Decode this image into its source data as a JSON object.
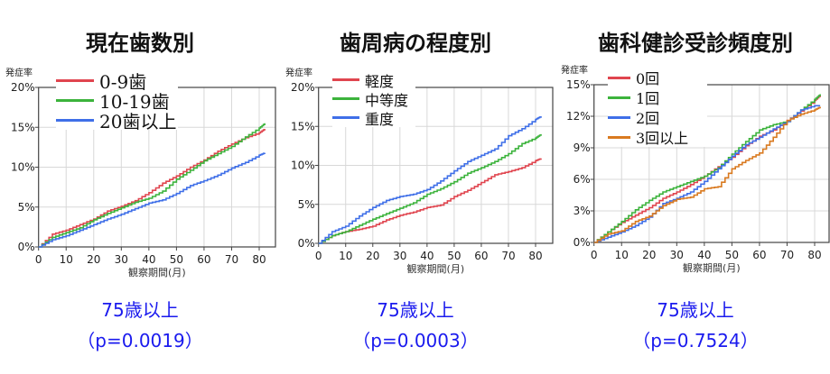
{
  "chart_data": [
    {
      "type": "line",
      "step": true,
      "title": "現在歯数別",
      "subtitle": "75歳以上",
      "pvalue": "（p=0.0019）",
      "ylabel": "発症率",
      "xlabel": "観察期間(月)",
      "xlim": [
        0,
        85
      ],
      "ylim": [
        0,
        20
      ],
      "xticks": [
        0,
        10,
        20,
        30,
        40,
        50,
        60,
        70,
        80
      ],
      "yticks": [
        0,
        5,
        10,
        15,
        20
      ],
      "ytick_suffix": "%",
      "grid": true,
      "legend": "top-left",
      "x": [
        0,
        5,
        10,
        15,
        20,
        25,
        30,
        35,
        40,
        45,
        50,
        55,
        60,
        65,
        70,
        75,
        80,
        82
      ],
      "series": [
        {
          "name": "0-9歯",
          "color": "#e0454f",
          "values": [
            0,
            1.6,
            2.1,
            2.8,
            3.5,
            4.5,
            5.1,
            5.8,
            6.8,
            8.0,
            8.9,
            10.0,
            10.9,
            12.0,
            12.9,
            13.7,
            14.3,
            14.8
          ]
        },
        {
          "name": "10-19歯",
          "color": "#3cb33c",
          "values": [
            0,
            1.2,
            1.8,
            2.4,
            3.4,
            4.2,
            4.9,
            5.6,
            6.1,
            7.0,
            8.5,
            9.6,
            10.8,
            11.7,
            12.6,
            13.8,
            14.9,
            15.5
          ]
        },
        {
          "name": "20歯以上",
          "color": "#3f6fe8",
          "values": [
            0,
            0.9,
            1.4,
            2.1,
            2.8,
            3.5,
            4.1,
            4.8,
            5.5,
            5.9,
            6.7,
            7.7,
            8.3,
            9.0,
            9.9,
            10.6,
            11.5,
            11.8
          ]
        }
      ]
    },
    {
      "type": "line",
      "step": true,
      "title": "歯周病の程度別",
      "subtitle": "75歳以上",
      "pvalue": "（p=0.0003）",
      "ylabel": "発症率",
      "xlabel": "観察期間(月)",
      "xlim": [
        0,
        85
      ],
      "ylim": [
        0,
        20
      ],
      "xticks": [
        0,
        10,
        20,
        30,
        40,
        50,
        60,
        70,
        80
      ],
      "yticks": [
        0,
        5,
        10,
        15,
        20
      ],
      "ytick_suffix": "%",
      "grid": true,
      "legend": "top-left",
      "x": [
        0,
        5,
        10,
        15,
        20,
        25,
        30,
        35,
        40,
        45,
        50,
        55,
        60,
        65,
        70,
        75,
        80,
        82
      ],
      "series": [
        {
          "name": "軽度",
          "color": "#e0454f",
          "values": [
            0,
            1.0,
            1.5,
            1.8,
            2.2,
            3.0,
            3.6,
            4.0,
            4.6,
            4.9,
            6.0,
            6.8,
            7.8,
            8.8,
            9.2,
            9.7,
            10.6,
            10.9
          ]
        },
        {
          "name": "中等度",
          "color": "#3cb33c",
          "values": [
            0,
            1.0,
            1.5,
            2.3,
            3.1,
            3.8,
            4.5,
            5.2,
            6.3,
            7.0,
            7.9,
            9.0,
            9.7,
            10.5,
            11.5,
            12.8,
            13.5,
            14.0
          ]
        },
        {
          "name": "重度",
          "color": "#3f6fe8",
          "values": [
            0,
            1.5,
            2.2,
            3.5,
            4.6,
            5.5,
            6.0,
            6.3,
            6.9,
            8.0,
            9.3,
            10.5,
            11.3,
            12.1,
            13.8,
            14.7,
            15.9,
            16.3
          ]
        }
      ]
    },
    {
      "type": "line",
      "step": true,
      "title": "歯科健診受診頻度別",
      "subtitle": "75歳以上",
      "pvalue": "（p=0.7524）",
      "ylabel": "発症率",
      "xlabel": "観察期間(月)",
      "xlim": [
        0,
        85
      ],
      "ylim": [
        0,
        15
      ],
      "xticks": [
        0,
        10,
        20,
        30,
        40,
        50,
        60,
        70,
        80
      ],
      "yticks": [
        0,
        3,
        6,
        9,
        12,
        15
      ],
      "ytick_suffix": "%",
      "grid": true,
      "legend": "top-left",
      "x": [
        0,
        5,
        10,
        15,
        20,
        25,
        30,
        35,
        40,
        45,
        50,
        55,
        60,
        65,
        70,
        75,
        80,
        82
      ],
      "series": [
        {
          "name": "0回",
          "color": "#e0454f",
          "values": [
            0,
            1.0,
            1.9,
            2.6,
            3.3,
            4.2,
            4.8,
            5.5,
            6.3,
            7.2,
            8.1,
            9.2,
            10.1,
            10.7,
            11.6,
            12.5,
            13.5,
            14.0
          ]
        },
        {
          "name": "1回",
          "color": "#3cb33c",
          "values": [
            0,
            1.0,
            2.0,
            3.1,
            4.0,
            4.8,
            5.3,
            5.8,
            6.3,
            7.1,
            8.4,
            9.6,
            10.7,
            11.2,
            11.5,
            12.6,
            13.6,
            14.1
          ]
        },
        {
          "name": "2回",
          "color": "#3f6fe8",
          "values": [
            0,
            0.5,
            1.0,
            1.6,
            2.4,
            3.7,
            4.2,
            4.8,
            5.8,
            7.0,
            8.2,
            9.3,
            10.0,
            10.8,
            11.5,
            12.6,
            13.0,
            13.0
          ]
        },
        {
          "name": "3回以上",
          "color": "#d97a20",
          "values": [
            0,
            0.8,
            1.1,
            2.0,
            2.5,
            3.5,
            4.1,
            4.3,
            5.1,
            5.3,
            7.0,
            7.8,
            8.5,
            10.0,
            11.6,
            12.2,
            12.6,
            12.9
          ]
        }
      ]
    }
  ]
}
